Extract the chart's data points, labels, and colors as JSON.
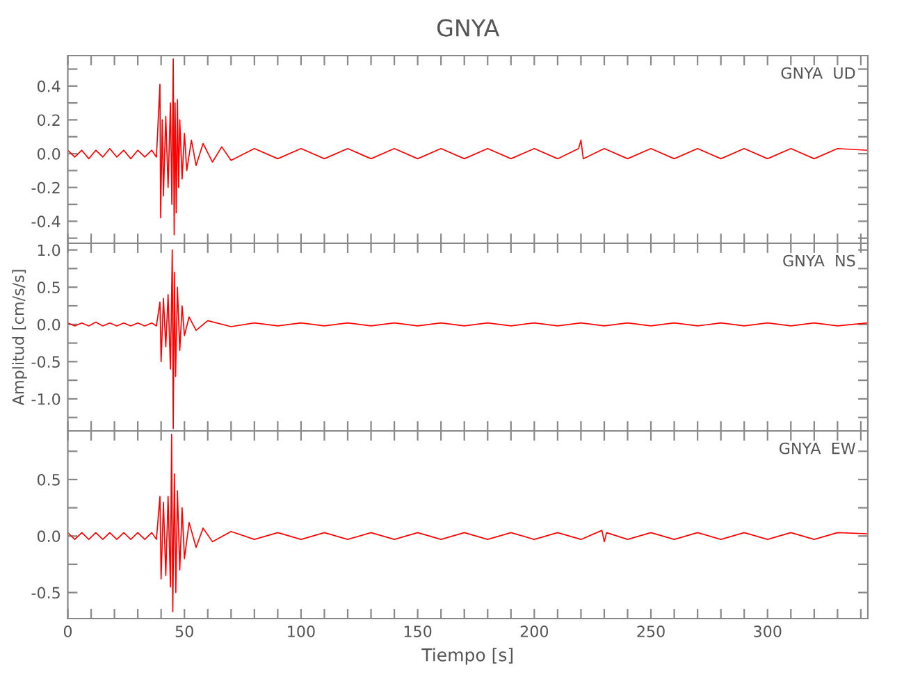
{
  "chart_data": [
    {
      "type": "line",
      "title": "GNYA",
      "annotations": [
        "GNYA  UD"
      ],
      "tick_labels": "y",
      "xlim": [
        0,
        343
      ],
      "ylim": [
        -0.53,
        0.58
      ],
      "xticks": [
        0,
        {
          "value": 10,
          "label": null
        },
        {
          "value": 20,
          "label": null
        },
        {
          "value": 30,
          "label": null
        },
        {
          "value": 40,
          "label": null
        },
        50,
        {
          "value": 60,
          "label": null
        },
        {
          "value": 70,
          "label": null
        },
        {
          "value": 80,
          "label": null
        },
        {
          "value": 90,
          "label": null
        },
        100,
        {
          "value": 110,
          "label": null
        },
        {
          "value": 120,
          "label": null
        },
        {
          "value": 130,
          "label": null
        },
        {
          "value": 140,
          "label": null
        },
        150,
        {
          "value": 160,
          "label": null
        },
        {
          "value": 170,
          "label": null
        },
        {
          "value": 180,
          "label": null
        },
        {
          "value": 190,
          "label": null
        },
        200,
        {
          "value": 210,
          "label": null
        },
        {
          "value": 220,
          "label": null
        },
        {
          "value": 230,
          "label": null
        },
        {
          "value": 240,
          "label": null
        },
        250,
        {
          "value": 260,
          "label": null
        },
        {
          "value": 270,
          "label": null
        },
        {
          "value": 280,
          "label": null
        },
        {
          "value": 290,
          "label": null
        },
        300,
        {
          "value": 310,
          "label": null
        },
        {
          "value": 320,
          "label": null
        },
        {
          "value": 330,
          "label": null
        },
        {
          "value": 340,
          "label": null
        }
      ],
      "yticks": [
        {
          "value": -0.5,
          "label": null
        },
        -0.4,
        {
          "value": -0.3,
          "label": null
        },
        -0.2,
        {
          "value": -0.1,
          "label": null
        },
        {
          "value": 0,
          "label": "0.0"
        },
        {
          "value": 0.1,
          "label": null
        },
        0.2,
        {
          "value": 0.3,
          "label": null
        },
        0.4,
        {
          "value": 0.5,
          "label": null
        }
      ],
      "series": [
        {
          "color": "#ff0000",
          "x": [
            0,
            3,
            6,
            9,
            12,
            15,
            18,
            21,
            24,
            27,
            30,
            33,
            36,
            38,
            39.5,
            39.8,
            40.5,
            41,
            42,
            43,
            44,
            44.6,
            45.2,
            45.6,
            46,
            46.5,
            47,
            47.5,
            48,
            49,
            50,
            51,
            53,
            55,
            58,
            62,
            66,
            70,
            80,
            90,
            100,
            110,
            120,
            130,
            140,
            150,
            160,
            170,
            180,
            190,
            200,
            210,
            219,
            220,
            221,
            230,
            240,
            250,
            260,
            270,
            280,
            290,
            300,
            310,
            320,
            330,
            343
          ],
          "values": [
            0.02,
            -0.02,
            0.02,
            -0.03,
            0.02,
            -0.02,
            0.03,
            -0.02,
            0.02,
            -0.03,
            0.02,
            -0.02,
            0.02,
            -0.02,
            0.41,
            -0.38,
            0.2,
            -0.25,
            0.22,
            -0.2,
            0.3,
            -0.3,
            0.56,
            -0.48,
            0.3,
            -0.35,
            0.32,
            -0.2,
            0.2,
            -0.15,
            0.12,
            -0.1,
            0.08,
            -0.07,
            0.06,
            -0.05,
            0.04,
            -0.04,
            0.03,
            -0.03,
            0.03,
            -0.03,
            0.03,
            -0.03,
            0.03,
            -0.03,
            0.03,
            -0.03,
            0.03,
            -0.03,
            0.03,
            -0.03,
            0.03,
            0.08,
            -0.03,
            0.03,
            -0.03,
            0.03,
            -0.03,
            0.03,
            -0.03,
            0.03,
            -0.03,
            0.03,
            -0.03,
            0.03,
            0.02
          ]
        }
      ]
    },
    {
      "type": "line",
      "ylabel": "Amplitud [cm/s/s]",
      "annotations": [
        "GNYA  NS"
      ],
      "tick_labels": "y",
      "xlim": [
        0,
        343
      ],
      "ylim": [
        -1.43,
        1.09
      ],
      "xticks": [
        0,
        {
          "value": 10,
          "label": null
        },
        {
          "value": 20,
          "label": null
        },
        {
          "value": 30,
          "label": null
        },
        {
          "value": 40,
          "label": null
        },
        50,
        {
          "value": 60,
          "label": null
        },
        {
          "value": 70,
          "label": null
        },
        {
          "value": 80,
          "label": null
        },
        {
          "value": 90,
          "label": null
        },
        100,
        {
          "value": 110,
          "label": null
        },
        {
          "value": 120,
          "label": null
        },
        {
          "value": 130,
          "label": null
        },
        {
          "value": 140,
          "label": null
        },
        150,
        {
          "value": 160,
          "label": null
        },
        {
          "value": 170,
          "label": null
        },
        {
          "value": 180,
          "label": null
        },
        {
          "value": 190,
          "label": null
        },
        200,
        {
          "value": 210,
          "label": null
        },
        {
          "value": 220,
          "label": null
        },
        {
          "value": 230,
          "label": null
        },
        {
          "value": 240,
          "label": null
        },
        250,
        {
          "value": 260,
          "label": null
        },
        {
          "value": 270,
          "label": null
        },
        {
          "value": 280,
          "label": null
        },
        {
          "value": 290,
          "label": null
        },
        300,
        {
          "value": 310,
          "label": null
        },
        {
          "value": 320,
          "label": null
        },
        {
          "value": 330,
          "label": null
        },
        {
          "value": 340,
          "label": null
        }
      ],
      "yticks": [
        {
          "value": -1.25,
          "label": null
        },
        {
          "value": -1,
          "label": "-1.0"
        },
        {
          "value": -0.75,
          "label": null
        },
        -0.5,
        {
          "value": -0.25,
          "label": null
        },
        {
          "value": 0,
          "label": "0.0"
        },
        {
          "value": 0.25,
          "label": null
        },
        0.5,
        {
          "value": 0.75,
          "label": null
        },
        {
          "value": 1,
          "label": "1.0"
        }
      ],
      "series": [
        {
          "color": "#ff0000",
          "x": [
            0,
            3,
            6,
            9,
            12,
            15,
            18,
            21,
            24,
            27,
            30,
            33,
            36,
            38,
            39.5,
            40,
            41,
            42,
            43,
            44,
            44.8,
            45.2,
            45.7,
            46.2,
            47,
            48,
            49,
            50,
            52,
            55,
            60,
            70,
            80,
            90,
            100,
            110,
            120,
            130,
            140,
            150,
            160,
            170,
            180,
            190,
            200,
            210,
            220,
            230,
            240,
            250,
            260,
            270,
            280,
            290,
            300,
            310,
            320,
            330,
            343
          ],
          "values": [
            0.02,
            -0.02,
            0.02,
            -0.02,
            0.03,
            -0.02,
            0.02,
            -0.02,
            0.02,
            -0.02,
            0.02,
            -0.02,
            0.02,
            -0.02,
            0.3,
            -0.5,
            0.35,
            -0.3,
            0.4,
            -0.6,
            1.0,
            -1.4,
            0.7,
            -0.7,
            0.5,
            -0.35,
            0.25,
            -0.15,
            0.1,
            -0.08,
            0.05,
            -0.03,
            0.02,
            -0.02,
            0.02,
            -0.02,
            0.02,
            -0.02,
            0.02,
            -0.02,
            0.02,
            -0.02,
            0.02,
            -0.02,
            0.02,
            -0.02,
            0.02,
            -0.02,
            0.02,
            -0.02,
            0.02,
            -0.02,
            0.02,
            -0.02,
            0.02,
            -0.02,
            0.02,
            -0.02,
            0.02
          ]
        }
      ]
    },
    {
      "type": "line",
      "xlabel": "Tiempo [s]",
      "annotations": [
        "GNYA  EW"
      ],
      "xlim": [
        0,
        343
      ],
      "ylim": [
        -0.73,
        0.93
      ],
      "xticks": [
        0,
        {
          "value": 10,
          "label": null
        },
        {
          "value": 20,
          "label": null
        },
        {
          "value": 30,
          "label": null
        },
        {
          "value": 40,
          "label": null
        },
        50,
        {
          "value": 60,
          "label": null
        },
        {
          "value": 70,
          "label": null
        },
        {
          "value": 80,
          "label": null
        },
        {
          "value": 90,
          "label": null
        },
        100,
        {
          "value": 110,
          "label": null
        },
        {
          "value": 120,
          "label": null
        },
        {
          "value": 130,
          "label": null
        },
        {
          "value": 140,
          "label": null
        },
        150,
        {
          "value": 160,
          "label": null
        },
        {
          "value": 170,
          "label": null
        },
        {
          "value": 180,
          "label": null
        },
        {
          "value": 190,
          "label": null
        },
        200,
        {
          "value": 210,
          "label": null
        },
        {
          "value": 220,
          "label": null
        },
        {
          "value": 230,
          "label": null
        },
        {
          "value": 240,
          "label": null
        },
        250,
        {
          "value": 260,
          "label": null
        },
        {
          "value": 270,
          "label": null
        },
        {
          "value": 280,
          "label": null
        },
        {
          "value": 290,
          "label": null
        },
        300,
        {
          "value": 310,
          "label": null
        },
        {
          "value": 320,
          "label": null
        },
        {
          "value": 330,
          "label": null
        },
        {
          "value": 340,
          "label": null
        }
      ],
      "yticks": [
        -0.5,
        {
          "value": -0.25,
          "label": null
        },
        {
          "value": 0,
          "label": "0.0"
        },
        {
          "value": 0.25,
          "label": null
        },
        0.5,
        {
          "value": 0.75,
          "label": null
        }
      ],
      "series": [
        {
          "color": "#ff0000",
          "x": [
            0,
            3,
            6,
            9,
            12,
            15,
            18,
            21,
            24,
            27,
            30,
            33,
            36,
            38,
            39.5,
            40,
            41,
            42,
            43,
            44,
            44.5,
            45,
            45.7,
            46.3,
            47,
            48,
            49,
            50,
            52,
            55,
            58,
            62,
            70,
            80,
            90,
            100,
            110,
            120,
            130,
            140,
            150,
            160,
            170,
            180,
            190,
            200,
            210,
            220,
            229,
            230,
            231,
            240,
            250,
            260,
            270,
            280,
            290,
            300,
            310,
            320,
            330,
            343
          ],
          "values": [
            0.03,
            -0.03,
            0.03,
            -0.03,
            0.03,
            -0.03,
            0.03,
            -0.03,
            0.03,
            -0.03,
            0.03,
            -0.03,
            0.03,
            -0.03,
            0.35,
            -0.38,
            0.3,
            -0.35,
            0.35,
            -0.45,
            0.9,
            -0.67,
            0.55,
            -0.5,
            0.4,
            -0.3,
            0.25,
            -0.2,
            0.12,
            -0.1,
            0.07,
            -0.05,
            0.04,
            -0.03,
            0.03,
            -0.03,
            0.03,
            -0.03,
            0.03,
            -0.03,
            0.03,
            -0.03,
            0.03,
            -0.03,
            0.03,
            -0.03,
            0.03,
            -0.03,
            0.05,
            -0.05,
            0.03,
            -0.03,
            0.03,
            -0.03,
            0.03,
            -0.03,
            0.03,
            -0.03,
            0.03,
            -0.03,
            0.03,
            0.02
          ]
        }
      ]
    }
  ]
}
